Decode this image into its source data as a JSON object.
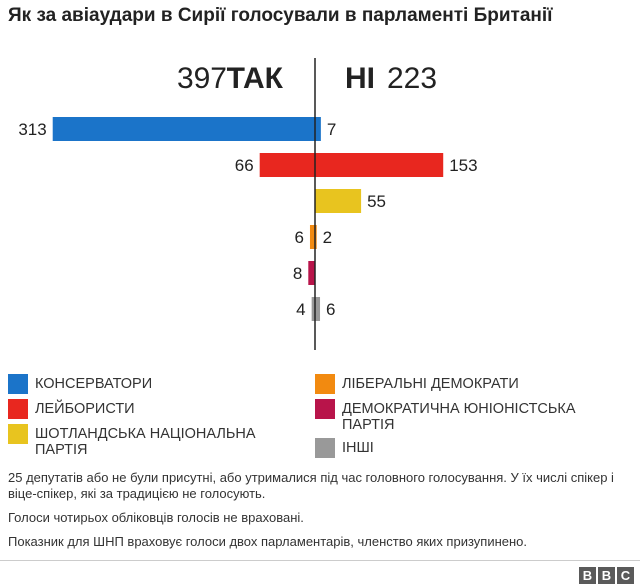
{
  "title": "Як за авіаудари в Сирії голосували в парламенті Британії",
  "chart_data": {
    "type": "bar",
    "orientation": "horizontal-diverging",
    "totals": {
      "yes_value": "397",
      "yes_label": "ТАК",
      "no_value": "223",
      "no_label": "НІ"
    },
    "categories": [
      "КОНСЕРВАТОРИ",
      "ЛЕЙБОРИСТИ",
      "ШОТЛАНДСЬКА НАЦІОНАЛЬНА ПАРТІЯ",
      "ЛІБЕРАЛЬНІ ДЕМОКРАТИ",
      "ДЕМОКРАТИЧНА ЮНІОНІСТСЬКА ПАРТІЯ",
      "ІНШІ"
    ],
    "series": [
      {
        "name": "ТАК",
        "values": [
          313,
          66,
          0,
          6,
          8,
          4
        ]
      },
      {
        "name": "НІ",
        "values": [
          7,
          153,
          55,
          2,
          0,
          6
        ]
      }
    ],
    "colors": [
      "#1b74c9",
      "#e8271f",
      "#e8c41f",
      "#f28a10",
      "#b8144a",
      "#999999"
    ],
    "legend_position": "bottom"
  },
  "legend": [
    {
      "label": "КОНСЕРВАТОРИ",
      "color": "#1b74c9"
    },
    {
      "label": "ЛЕЙБОРИСТИ",
      "color": "#e8271f"
    },
    {
      "label": "ШОТЛАНДСЬКА НАЦІОНАЛЬНА ПАРТІЯ",
      "color": "#e8c41f"
    },
    {
      "label": "ЛІБЕРАЛЬНІ ДЕМОКРАТИ",
      "color": "#f28a10"
    },
    {
      "label": "ДЕМОКРАТИЧНА ЮНІОНІСТСЬКА ПАРТІЯ",
      "color": "#b8144a"
    },
    {
      "label": "ІНШІ",
      "color": "#999999"
    }
  ],
  "notes": [
    "25 депутатів або не були присутні, або утрималися під час головного голосування. У їх числі спікер і віце-спікер, які за традицією не голосують.",
    "Голоси чотирьох обліковців голосів не враховані.",
    "Показник для ШНП враховує голоси двох парламентарів, членство яких призупинено."
  ],
  "footer": {
    "logo_letters": [
      "B",
      "B",
      "C"
    ]
  }
}
